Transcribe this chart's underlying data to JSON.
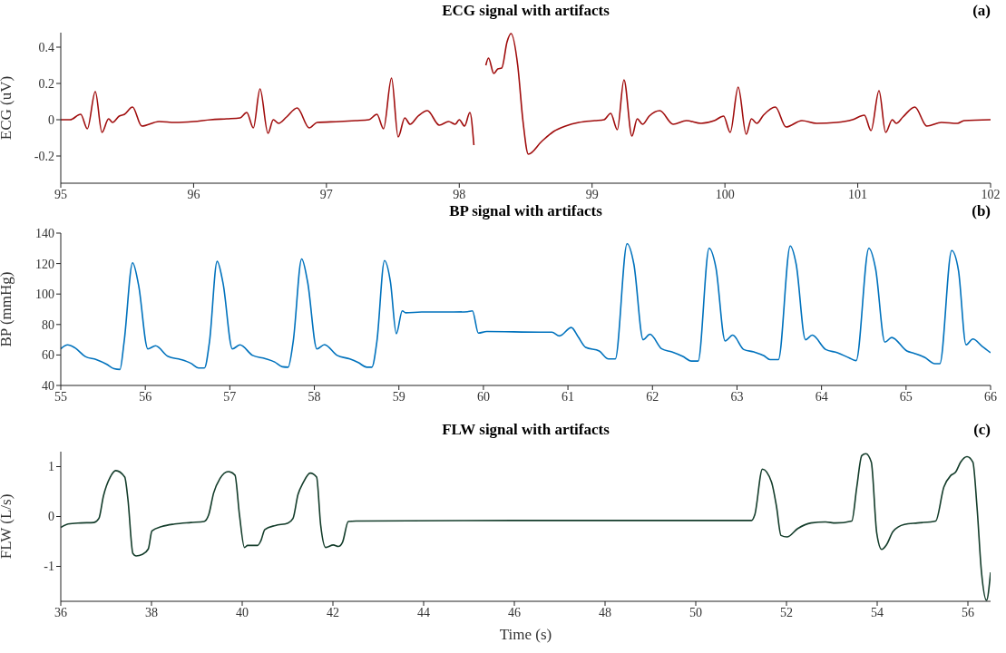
{
  "chart_data": [
    {
      "type": "line",
      "title": "ECG signal with artifacts",
      "ylabel": "ECG (uV)",
      "annotations": [
        "(a)"
      ],
      "xlim": [
        95,
        102
      ],
      "xticks": [
        95,
        96,
        97,
        98,
        99,
        100,
        101,
        102
      ],
      "ylim": [
        -0.35,
        0.48
      ],
      "yticks": [
        -0.2,
        0,
        0.2,
        0.4
      ],
      "series": [
        {
          "color": "#a00d0d",
          "x": [
            95,
            95.07,
            95.15,
            95.2,
            95.26,
            95.31,
            95.36,
            95.39,
            95.44,
            95.48,
            95.54,
            95.61,
            95.74,
            95.86,
            96,
            96.13,
            96.25,
            96.35,
            96.4,
            96.45,
            96.5,
            96.56,
            96.6,
            96.64,
            96.7,
            96.78,
            96.87,
            96.93,
            97.1,
            97.22,
            97.32,
            97.38,
            97.43,
            97.49,
            97.54,
            97.59,
            97.63,
            97.69,
            97.76,
            97.85,
            97.92,
            97.97,
            98,
            98.04,
            98.08,
            98.11,
            98.13,
            98.17,
            98.2,
            98.22,
            98.26,
            98.29,
            98.32,
            98.36,
            98.39,
            98.44,
            98.48,
            98.52,
            98.62,
            98.71,
            98.8,
            98.9,
            99.02,
            99.09,
            99.14,
            99.19,
            99.24,
            99.3,
            99.34,
            99.38,
            99.43,
            99.51,
            99.61,
            99.71,
            99.82,
            99.92,
            99.99,
            100.04,
            100.1,
            100.16,
            100.2,
            100.24,
            100.29,
            100.38,
            100.46,
            100.58,
            100.69,
            100.84,
            100.96,
            101.05,
            101.1,
            101.16,
            101.21,
            101.26,
            101.29,
            101.34,
            101.43,
            101.52,
            101.63,
            101.75,
            101.8,
            102
          ],
          "values": [
            0,
            0,
            0.03,
            -0.05,
            0.155,
            -0.07,
            0.005,
            -0.015,
            0.02,
            0.03,
            0.07,
            -0.035,
            -0.01,
            -0.015,
            -0.01,
            0,
            0.005,
            0.01,
            0.04,
            -0.045,
            0.17,
            -0.075,
            0,
            -0.02,
            0.015,
            0.065,
            -0.045,
            -0.015,
            -0.01,
            -0.005,
            0,
            0.03,
            -0.05,
            0.23,
            -0.095,
            0.01,
            -0.025,
            0.02,
            0.05,
            -0.03,
            -0.01,
            -0.025,
            0,
            -0.035,
            0.04,
            -0.14,
            null,
            null,
            0.3,
            0.34,
            0.255,
            0.28,
            0.285,
            0.43,
            0.475,
            0.3,
            -0.01,
            -0.19,
            -0.12,
            -0.065,
            -0.035,
            -0.015,
            -0.005,
            0,
            0.035,
            -0.055,
            0.22,
            -0.09,
            0.005,
            -0.025,
            0.02,
            0.05,
            -0.025,
            -0.005,
            -0.02,
            -0.005,
            0.02,
            -0.07,
            0.18,
            -0.08,
            0.005,
            -0.02,
            0.025,
            0.07,
            -0.04,
            -0.005,
            -0.02,
            -0.015,
            0,
            0.025,
            -0.06,
            0.16,
            -0.07,
            0,
            -0.02,
            0.015,
            0.07,
            -0.035,
            -0.015,
            -0.02,
            -0.005,
            0
          ]
        }
      ]
    },
    {
      "type": "line",
      "title": "BP signal with artifacts",
      "ylabel": "BP (mmHg)",
      "annotations": [
        "(b)"
      ],
      "xlim": [
        55,
        66
      ],
      "xticks": [
        55,
        56,
        57,
        58,
        59,
        60,
        61,
        62,
        63,
        64,
        65,
        66
      ],
      "ylim": [
        40,
        140
      ],
      "yticks": [
        40,
        60,
        80,
        100,
        120,
        140
      ],
      "series": [
        {
          "color": "#0072bd",
          "x": [
            55,
            55.08,
            55.17,
            55.29,
            55.42,
            55.54,
            55.63,
            55.7,
            55.75,
            55.85,
            55.92,
            56.03,
            56.12,
            56.27,
            56.42,
            56.54,
            56.63,
            56.7,
            56.76,
            56.85,
            56.92,
            57.03,
            57.12,
            57.27,
            57.42,
            57.53,
            57.62,
            57.69,
            57.75,
            57.85,
            57.92,
            58.03,
            58.12,
            58.27,
            58.42,
            58.52,
            58.62,
            58.68,
            58.74,
            58.83,
            58.9,
            58.97,
            59.04,
            59.08,
            59.27,
            59.65,
            59.81,
            59.87,
            59.94,
            60.04,
            60.67,
            60.81,
            60.9,
            61.04,
            61.12,
            61.21,
            61.37,
            61.48,
            61.56,
            61.7,
            61.78,
            61.89,
            61.97,
            62.11,
            62.23,
            62.36,
            62.46,
            62.54,
            62.67,
            62.75,
            62.86,
            62.95,
            63.08,
            63.2,
            63.32,
            63.39,
            63.49,
            63.63,
            63.7,
            63.81,
            63.89,
            64.05,
            64.19,
            64.33,
            64.41,
            64.56,
            64.64,
            64.75,
            64.83,
            65.01,
            65.1,
            65.22,
            65.34,
            65.4,
            65.54,
            65.62,
            65.71,
            65.79,
            65.9,
            66
          ],
          "values": [
            64,
            66.6,
            64.6,
            59,
            57,
            54,
            51,
            50.5,
            69,
            120.5,
            106,
            64,
            66,
            59,
            57,
            54.5,
            51.5,
            51.5,
            69,
            121.5,
            107,
            64,
            66.6,
            59.7,
            57.6,
            55.4,
            52.3,
            52,
            69,
            123,
            108,
            64,
            66.8,
            59.7,
            57.4,
            55,
            52,
            52,
            69,
            122,
            108,
            74,
            89,
            87.7,
            88.2,
            88.2,
            88.4,
            89,
            74.4,
            75.4,
            75,
            75,
            72.5,
            78,
            72,
            65,
            62.6,
            57.4,
            57.4,
            133,
            119.6,
            70,
            73.6,
            64,
            62,
            59,
            56,
            56,
            130,
            117.5,
            69.2,
            73,
            63.6,
            62,
            59.5,
            57,
            57,
            131.5,
            119.6,
            70,
            73,
            63.6,
            61.5,
            58,
            56.3,
            130,
            116.5,
            68.4,
            71.5,
            62.6,
            61,
            58.4,
            54.3,
            54.3,
            128.5,
            115.5,
            66.7,
            70.5,
            65.7,
            61.5
          ]
        }
      ]
    },
    {
      "type": "line",
      "title": "FLW signal with artifacts",
      "xlabel": "Time (s)",
      "ylabel": "FLW (L/s)",
      "annotations": [
        "(c)"
      ],
      "xlim": [
        36,
        56.5
      ],
      "xticks": [
        36,
        38,
        40,
        42,
        44,
        46,
        48,
        50,
        52,
        54,
        56
      ],
      "ylim": [
        -1.7,
        1.3
      ],
      "yticks": [
        -1,
        0,
        1
      ],
      "series": [
        {
          "color": "#143d2b",
          "x": [
            36,
            36.16,
            36.44,
            36.73,
            36.84,
            36.94,
            37.09,
            37.21,
            37.41,
            37.48,
            37.59,
            37.66,
            37.8,
            37.93,
            38.01,
            38.23,
            38.51,
            38.87,
            39.16,
            39.26,
            39.37,
            39.51,
            39.69,
            39.84,
            39.94,
            40.05,
            40.12,
            40.34,
            40.41,
            40.5,
            40.73,
            41.01,
            41.12,
            41.23,
            41.34,
            41.5,
            41.64,
            41.73,
            41.84,
            42.01,
            42.12,
            42.21,
            42.34,
            42.51,
            46,
            51.23,
            51.3,
            51.47,
            51.67,
            51.78,
            51.88,
            52.01,
            52.25,
            52.54,
            52.86,
            53.08,
            53.44,
            53.55,
            53.66,
            53.75,
            53.87,
            53.99,
            54.1,
            54.21,
            54.35,
            54.6,
            54.89,
            55.29,
            55.47,
            55.62,
            55.73,
            55.84,
            55.98,
            56.11,
            56.2,
            56.3,
            56.41,
            56.5
          ],
          "values": [
            -0.22,
            -0.15,
            -0.13,
            -0.12,
            -0.04,
            0.41,
            0.79,
            0.92,
            0.79,
            0.35,
            -0.74,
            -0.79,
            -0.76,
            -0.65,
            -0.29,
            -0.2,
            -0.15,
            -0.12,
            -0.1,
            0.03,
            0.47,
            0.76,
            0.9,
            0.83,
            0.03,
            -0.62,
            -0.58,
            -0.58,
            -0.49,
            -0.26,
            -0.18,
            -0.13,
            -0.04,
            0.44,
            0.67,
            0.87,
            0.79,
            -0.17,
            -0.62,
            -0.57,
            -0.6,
            -0.52,
            -0.1,
            -0.09,
            -0.08,
            -0.08,
            0.03,
            0.95,
            0.69,
            0.2,
            -0.38,
            -0.41,
            -0.24,
            -0.13,
            -0.11,
            -0.13,
            -0.09,
            0.59,
            1.22,
            1.26,
            1.09,
            -0.33,
            -0.66,
            -0.56,
            -0.3,
            -0.16,
            -0.13,
            -0.09,
            0.59,
            0.82,
            0.89,
            1.09,
            1.2,
            1.09,
            0.2,
            -1.12,
            -1.68,
            -1.12
          ]
        }
      ]
    }
  ]
}
